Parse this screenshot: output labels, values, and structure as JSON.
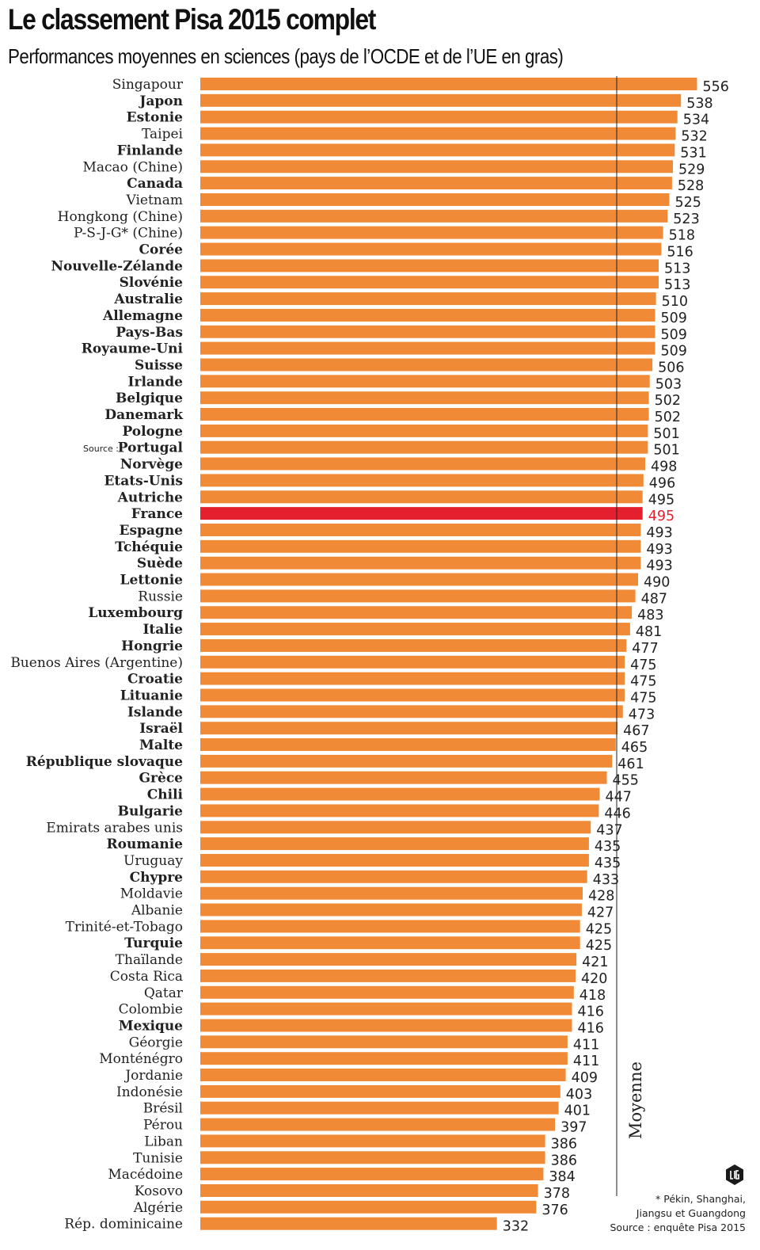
{
  "title": "Le classement Pisa 2015 complet",
  "subtitle": "Performances moyennes en sciences (pays de l’OCDE et de l’UE en gras)",
  "average_label": "Moyenne",
  "source_inline": "Source :",
  "footnote": [
    "* Pékin, Shanghai,",
    "Jiangsu et Guangdong",
    "Source : enquête Pisa 2015"
  ],
  "colors": {
    "bar": "#f08a37",
    "highlight": "#e4202e",
    "text": "#222222"
  },
  "chart_data": {
    "type": "bar",
    "orientation": "horizontal",
    "title": "Le classement Pisa 2015 complet",
    "subtitle": "Performances moyennes en sciences (pays de l’OCDE et de l’UE en gras)",
    "highlight": "France",
    "reference_line": {
      "label": "Moyenne",
      "value": 493
    },
    "categories": [
      "Singapour",
      "Japon",
      "Estonie",
      "Taipei",
      "Finlande",
      "Macao (Chine)",
      "Canada",
      "Vietnam",
      "Hongkong (Chine)",
      "P-S-J-G* (Chine)",
      "Corée",
      "Nouvelle-Zélande",
      "Slovénie",
      "Australie",
      "Allemagne",
      "Pays-Bas",
      "Royaume-Uni",
      "Suisse",
      "Irlande",
      "Belgique",
      "Danemark",
      "Pologne",
      "Portugal",
      "Norvège",
      "Etats-Unis",
      "Autriche",
      "France",
      "Espagne",
      "Tchéquie",
      "Suède",
      "Lettonie",
      "Russie",
      "Luxembourg",
      "Italie",
      "Hongrie",
      "Buenos Aires (Argentine)",
      "Croatie",
      "Lituanie",
      "Islande",
      "Israël",
      "Malte",
      "République slovaque",
      "Grèce",
      "Chili",
      "Bulgarie",
      "Emirats arabes unis",
      "Roumanie",
      "Uruguay",
      "Chypre",
      "Moldavie",
      "Albanie",
      "Trinité-et-Tobago",
      "Turquie",
      "Thaïlande",
      "Costa Rica",
      "Qatar",
      "Colombie",
      "Mexique",
      "Géorgie",
      "Monténégro",
      "Jordanie",
      "Indonésie",
      "Brésil",
      "Pérou",
      "Liban",
      "Tunisie",
      "Macédoine",
      "Kosovo",
      "Algérie",
      "Rép. dominicaine"
    ],
    "values": [
      556,
      538,
      534,
      532,
      531,
      529,
      528,
      525,
      523,
      518,
      516,
      513,
      513,
      510,
      509,
      509,
      509,
      506,
      503,
      502,
      502,
      501,
      501,
      498,
      496,
      495,
      495,
      493,
      493,
      493,
      490,
      487,
      483,
      481,
      477,
      475,
      475,
      475,
      473,
      467,
      465,
      461,
      455,
      447,
      446,
      437,
      435,
      435,
      433,
      428,
      427,
      425,
      425,
      421,
      420,
      418,
      416,
      416,
      411,
      411,
      409,
      403,
      401,
      397,
      386,
      386,
      384,
      378,
      376,
      332
    ],
    "bold": [
      "Japon",
      "Estonie",
      "Finlande",
      "Canada",
      "Corée",
      "Nouvelle-Zélande",
      "Slovénie",
      "Australie",
      "Allemagne",
      "Pays-Bas",
      "Royaume-Uni",
      "Suisse",
      "Irlande",
      "Belgique",
      "Danemark",
      "Pologne",
      "Portugal",
      "Norvège",
      "Etats-Unis",
      "Autriche",
      "France",
      "Espagne",
      "Tchéquie",
      "Suède",
      "Lettonie",
      "Luxembourg",
      "Italie",
      "Hongrie",
      "Croatie",
      "Lituanie",
      "Islande",
      "Israël",
      "Malte",
      "République slovaque",
      "Grèce",
      "Chili",
      "Bulgarie",
      "Roumanie",
      "Chypre",
      "Turquie",
      "Mexique"
    ]
  }
}
